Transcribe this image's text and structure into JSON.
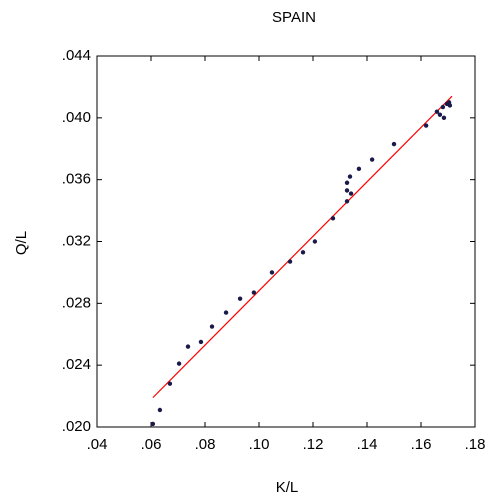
{
  "chart_data": {
    "type": "scatter",
    "title": "SPAIN",
    "x_label": "K/L",
    "y_label": "Q/L",
    "x": [
      0.0607,
      0.0633,
      0.067,
      0.0704,
      0.0737,
      0.0785,
      0.0826,
      0.0878,
      0.093,
      0.0981,
      0.1048,
      0.1115,
      0.1163,
      0.1207,
      0.1274,
      0.1326,
      0.1326,
      0.1326,
      0.1337,
      0.1341,
      0.137,
      0.1419,
      0.15,
      0.1619,
      0.1659,
      0.167,
      0.1685,
      0.1681,
      0.1696,
      0.1704,
      0.1707
    ],
    "y": [
      0.0202,
      0.0211,
      0.0228,
      0.0241,
      0.0252,
      0.0255,
      0.0265,
      0.0274,
      0.0283,
      0.0287,
      0.03,
      0.0307,
      0.0313,
      0.032,
      0.0335,
      0.0346,
      0.0353,
      0.0358,
      0.0362,
      0.0351,
      0.0367,
      0.0373,
      0.0383,
      0.0395,
      0.0404,
      0.0402,
      0.04,
      0.0407,
      0.0409,
      0.041,
      0.0408
    ],
    "color": "#1a1a4a",
    "fit_line": {
      "x": [
        0.0607,
        0.1715
      ],
      "y": [
        0.0219,
        0.0414
      ],
      "color": "#ff0000"
    },
    "xlim": [
      0.04,
      0.18
    ],
    "ylim": [
      0.02,
      0.044
    ],
    "xticks": [
      {
        "value": 0.04,
        "label": ".04"
      },
      {
        "value": 0.06,
        "label": ".06"
      },
      {
        "value": 0.08,
        "label": ".08"
      },
      {
        "value": 0.1,
        "label": ".10"
      },
      {
        "value": 0.12,
        "label": ".12"
      },
      {
        "value": 0.14,
        "label": ".14"
      },
      {
        "value": 0.16,
        "label": ".16"
      },
      {
        "value": 0.18,
        "label": ".18"
      }
    ],
    "yticks": [
      {
        "value": 0.02,
        "label": ".020"
      },
      {
        "value": 0.024,
        "label": ".024"
      },
      {
        "value": 0.028,
        "label": ".028"
      },
      {
        "value": 0.032,
        "label": ".032"
      },
      {
        "value": 0.036,
        "label": ".036"
      },
      {
        "value": 0.04,
        "label": ".040"
      },
      {
        "value": 0.044,
        "label": ".044"
      }
    ]
  }
}
